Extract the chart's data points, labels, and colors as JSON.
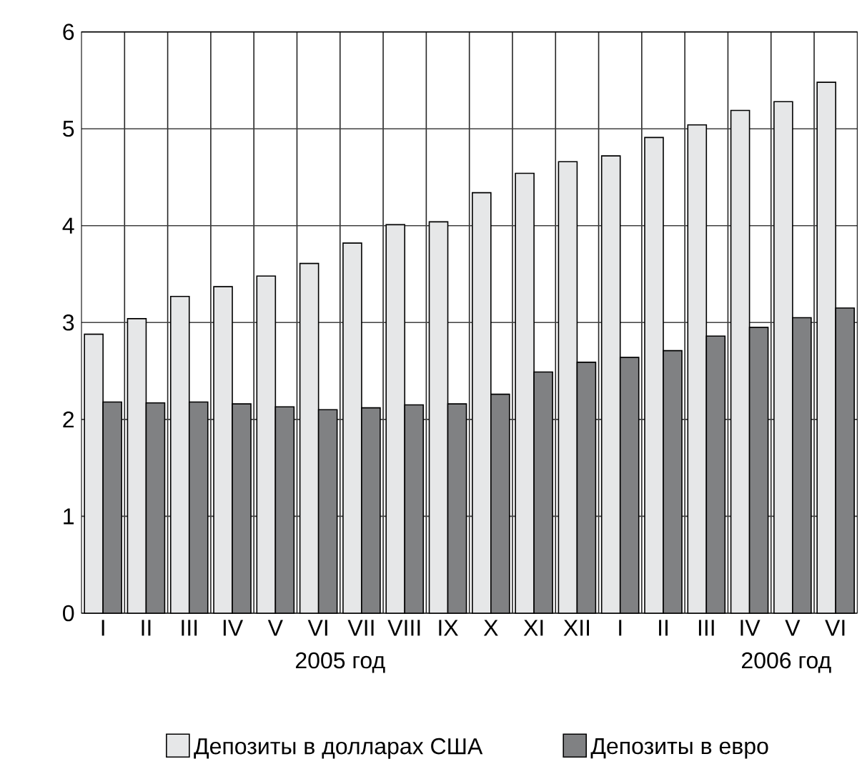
{
  "chart_data": {
    "type": "bar",
    "categories": [
      "I",
      "II",
      "III",
      "IV",
      "V",
      "VI",
      "VII",
      "VIII",
      "IX",
      "X",
      "XI",
      "XII",
      "I",
      "II",
      "III",
      "IV",
      "V",
      "VI"
    ],
    "series": [
      {
        "name": "Депозиты в долларах США",
        "color": "#e6e7e8",
        "values": [
          2.88,
          3.04,
          3.27,
          3.37,
          3.48,
          3.61,
          3.82,
          4.01,
          4.04,
          4.34,
          4.54,
          4.66,
          4.72,
          4.91,
          5.04,
          5.19,
          5.28,
          5.48
        ]
      },
      {
        "name": "Депозиты в евро",
        "color": "#808183",
        "values": [
          2.18,
          2.17,
          2.18,
          2.16,
          2.13,
          2.1,
          2.12,
          2.15,
          2.16,
          2.26,
          2.49,
          2.59,
          2.64,
          2.71,
          2.86,
          2.95,
          3.05,
          3.15
        ]
      }
    ],
    "ylim": [
      0,
      6
    ],
    "yticks": [
      0,
      1,
      2,
      3,
      4,
      5,
      6
    ],
    "grid": true,
    "legend": "bottom",
    "annotations": [
      "2005 год",
      "2006 год"
    ]
  }
}
